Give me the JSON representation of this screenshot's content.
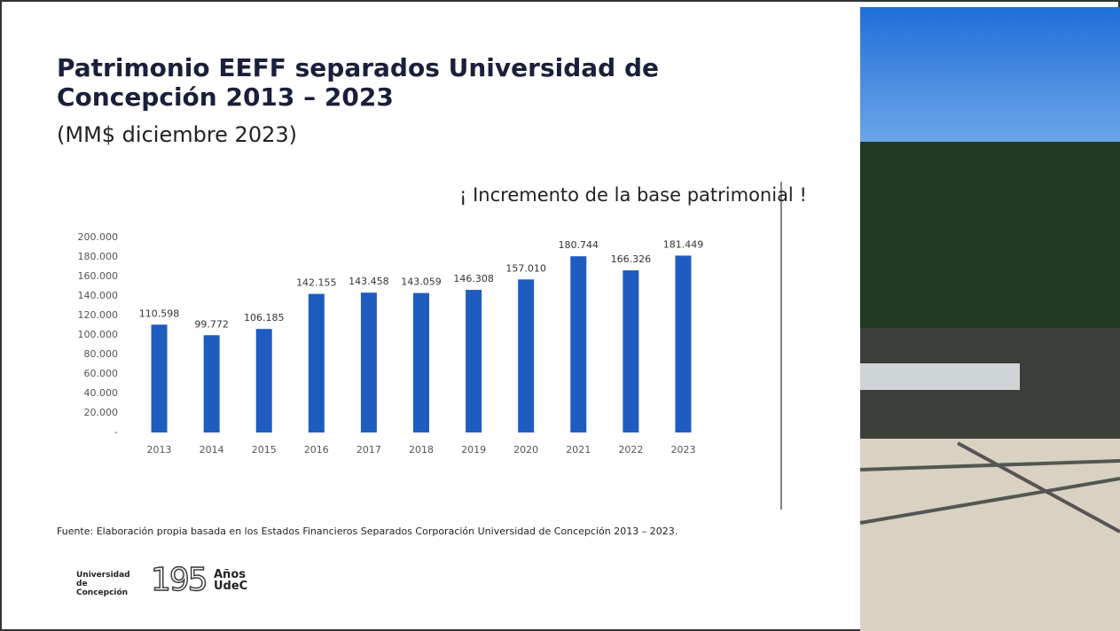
{
  "chart_data": {
    "type": "bar",
    "title": "Patrimonio EEFF separados Universidad de Concepción 2013 – 2023",
    "subtitle": "(MM$ diciembre 2023)",
    "annotation": "¡ Incremento de la base patrimonial !",
    "categories": [
      "2013",
      "2014",
      "2015",
      "2016",
      "2017",
      "2018",
      "2019",
      "2020",
      "2021",
      "2022",
      "2023"
    ],
    "values": [
      110598,
      99772,
      106185,
      142155,
      143458,
      143059,
      146308,
      157010,
      180744,
      166326,
      181449
    ],
    "value_labels": [
      "110.598",
      "99.772",
      "106.185",
      "142.155",
      "143.458",
      "143.059",
      "146.308",
      "157.010",
      "180.744",
      "166.326",
      "181.449"
    ],
    "color": "#1f5cc0",
    "ylim": [
      0,
      200000
    ],
    "yticks": [
      {
        "value": 0,
        "label": "-"
      },
      {
        "value": 20000,
        "label": "20.000"
      },
      {
        "value": 40000,
        "label": "40.000"
      },
      {
        "value": 60000,
        "label": "60.000"
      },
      {
        "value": 80000,
        "label": "80.000"
      },
      {
        "value": 100000,
        "label": "100.000"
      },
      {
        "value": 120000,
        "label": "120.000"
      },
      {
        "value": 140000,
        "label": "140.000"
      },
      {
        "value": 160000,
        "label": "160.000"
      },
      {
        "value": 180000,
        "label": "180.000"
      },
      {
        "value": 200000,
        "label": "200.000"
      }
    ],
    "grid": false
  },
  "footer": {
    "source": "Fuente: Elaboración propia basada en los Estados Financieros Separados Corporación Universidad de Concepción 2013 – 2023.",
    "logo_university": "Universidad de Concepción",
    "logo_number": "195",
    "logo_years": "Años",
    "logo_udec": "UdeC"
  }
}
